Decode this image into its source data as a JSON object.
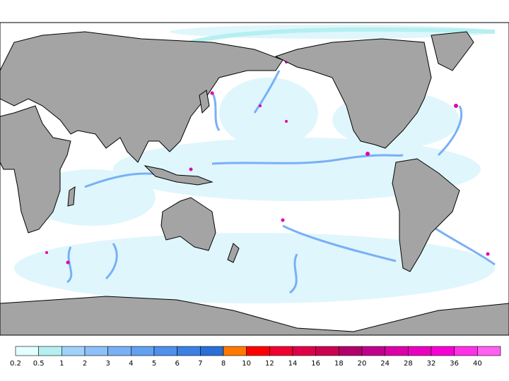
{
  "legend": {
    "labels": [
      "0.2",
      "0.5",
      "1",
      "2",
      "3",
      "4",
      "5",
      "6",
      "7",
      "8",
      "10",
      "12",
      "14",
      "16",
      "18",
      "20",
      "24",
      "28",
      "32",
      "36",
      "40"
    ],
    "colors": [
      "#e4ffff",
      "#b4f0f0",
      "#a0d2fa",
      "#8cc0f8",
      "#78b0f6",
      "#62a0f0",
      "#4e90ea",
      "#3c80e2",
      "#2a6ed8",
      "#ff7800",
      "#ff0000",
      "#ee0030",
      "#de0048",
      "#cc0050",
      "#b0006a",
      "#c0008c",
      "#dc00a8",
      "#ea00c0",
      "#f600d4",
      "#ff30e6",
      "#ff60f0"
    ]
  }
}
